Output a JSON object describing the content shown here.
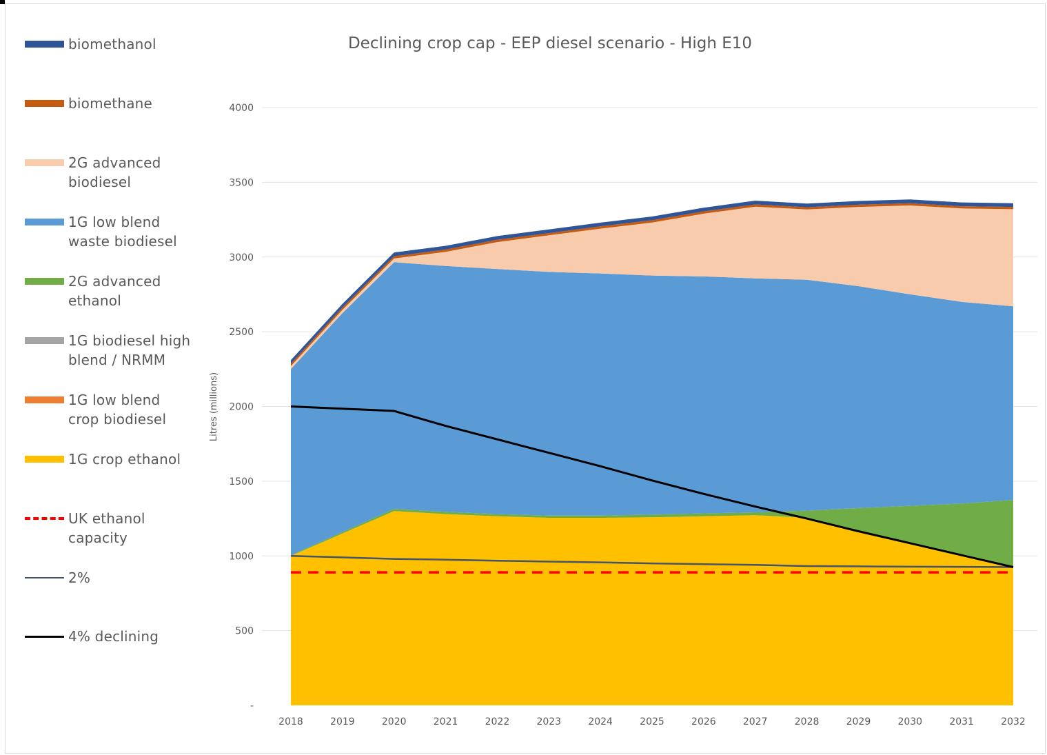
{
  "chart_data": {
    "type": "area",
    "title": "Declining crop cap  -  EEP diesel scenario  -  High E10",
    "xlabel": "",
    "ylabel": "Litres (millions)",
    "x": [
      2018,
      2019,
      2020,
      2021,
      2022,
      2023,
      2024,
      2025,
      2026,
      2027,
      2028,
      2029,
      2030,
      2031,
      2032
    ],
    "x_tick_labels": [
      "2018",
      "2019",
      "2020",
      "2021",
      "2022",
      "2023",
      "2024",
      "2025",
      "2026",
      "2027",
      "2028",
      "2029",
      "2030",
      "2031",
      "2032"
    ],
    "ylim": [
      0,
      4000
    ],
    "y_tick_labels": [
      "-",
      "500",
      "1000",
      "1500",
      "2000",
      "2500",
      "3000",
      "3500",
      "4000"
    ],
    "grid": true,
    "legend_position": "left",
    "stacked_series": [
      {
        "key": "crop_ethanol",
        "name": "1G crop ethanol",
        "color": "#ffc000",
        "values": [
          1000,
          1150,
          1300,
          1280,
          1265,
          1255,
          1255,
          1258,
          1265,
          1272,
          1255,
          1165,
          1085,
          1005,
          925
        ]
      },
      {
        "key": "advanced_ethanol",
        "name": "2G advanced ethanol",
        "color": "#70ad47",
        "values": [
          5,
          10,
          15,
          15,
          15,
          15,
          15,
          18,
          20,
          20,
          48,
          155,
          250,
          345,
          450
        ]
      },
      {
        "key": "crop_biodiesel",
        "name": "1G low blend crop biodiesel",
        "color": "#ed7d31",
        "values": [
          0,
          0,
          0,
          0,
          0,
          0,
          0,
          0,
          0,
          0,
          0,
          0,
          0,
          0,
          0
        ]
      },
      {
        "key": "high_blend",
        "name": "1G biodiesel high blend / NRMM",
        "color": "#a5a5a5",
        "values": [
          0,
          0,
          0,
          0,
          0,
          0,
          0,
          0,
          0,
          0,
          0,
          0,
          0,
          0,
          0
        ]
      },
      {
        "key": "waste_biodiesel",
        "name": "1G low blend waste biodiesel",
        "color": "#5b9bd5",
        "values": [
          1245,
          1465,
          1650,
          1645,
          1640,
          1630,
          1620,
          1600,
          1585,
          1565,
          1545,
          1485,
          1415,
          1350,
          1295
        ]
      },
      {
        "key": "advanced_biodiesel",
        "name": "2G advanced biodiesel",
        "color": "#f8cbad",
        "values": [
          20,
          22,
          25,
          95,
          180,
          245,
          300,
          355,
          420,
          480,
          470,
          530,
          595,
          625,
          650
        ]
      },
      {
        "key": "biomethane",
        "name": "biomethane",
        "color": "#c55a11",
        "values": [
          15,
          15,
          15,
          15,
          15,
          15,
          15,
          15,
          15,
          15,
          15,
          15,
          15,
          15,
          15
        ]
      },
      {
        "key": "biomethanol",
        "name": "biomethanol",
        "color": "#2f5597",
        "values": [
          25,
          25,
          25,
          25,
          25,
          25,
          25,
          25,
          25,
          25,
          25,
          25,
          25,
          25,
          25
        ]
      }
    ],
    "line_series": [
      {
        "key": "uk_capacity",
        "name": "UK ethanol capacity",
        "color": "#ff0000",
        "dashed": true,
        "values": [
          890,
          890,
          890,
          890,
          890,
          890,
          890,
          890,
          890,
          890,
          890,
          890,
          890,
          890,
          890
        ]
      },
      {
        "key": "two_pct",
        "name": "2%",
        "color": "#44546a",
        "dashed": false,
        "values": [
          1000,
          990,
          980,
          975,
          968,
          962,
          957,
          950,
          945,
          940,
          932,
          930,
          928,
          927,
          925
        ]
      },
      {
        "key": "four_pct_declining",
        "name": "4% declining",
        "color": "#000000",
        "dashed": false,
        "values": [
          2000,
          1985,
          1970,
          1870,
          1780,
          1690,
          1600,
          1505,
          1415,
          1330,
          1250,
          1165,
          1085,
          1005,
          925
        ]
      }
    ]
  },
  "legend": [
    {
      "label": "biomethanol",
      "color": "#2f5597",
      "kind": "box"
    },
    {
      "label": "biomethane",
      "color": "#c55a11",
      "kind": "box"
    },
    {
      "label": "2G advanced biodiesel",
      "color": "#f8cbad",
      "kind": "box"
    },
    {
      "label": "1G low blend waste biodiesel",
      "color": "#5b9bd5",
      "kind": "box"
    },
    {
      "label": "2G advanced ethanol",
      "color": "#70ad47",
      "kind": "box"
    },
    {
      "label": "1G biodiesel high blend / NRMM",
      "color": "#a5a5a5",
      "kind": "box"
    },
    {
      "label": "1G low blend crop biodiesel",
      "color": "#ed7d31",
      "kind": "box"
    },
    {
      "label": "1G crop ethanol",
      "color": "#ffc000",
      "kind": "box"
    },
    {
      "label": "UK ethanol capacity",
      "color": "#ff0000",
      "kind": "dash"
    },
    {
      "label": "2%",
      "color": "#44546a",
      "kind": "line"
    },
    {
      "label": "4% declining",
      "color": "#000000",
      "kind": "line"
    }
  ]
}
